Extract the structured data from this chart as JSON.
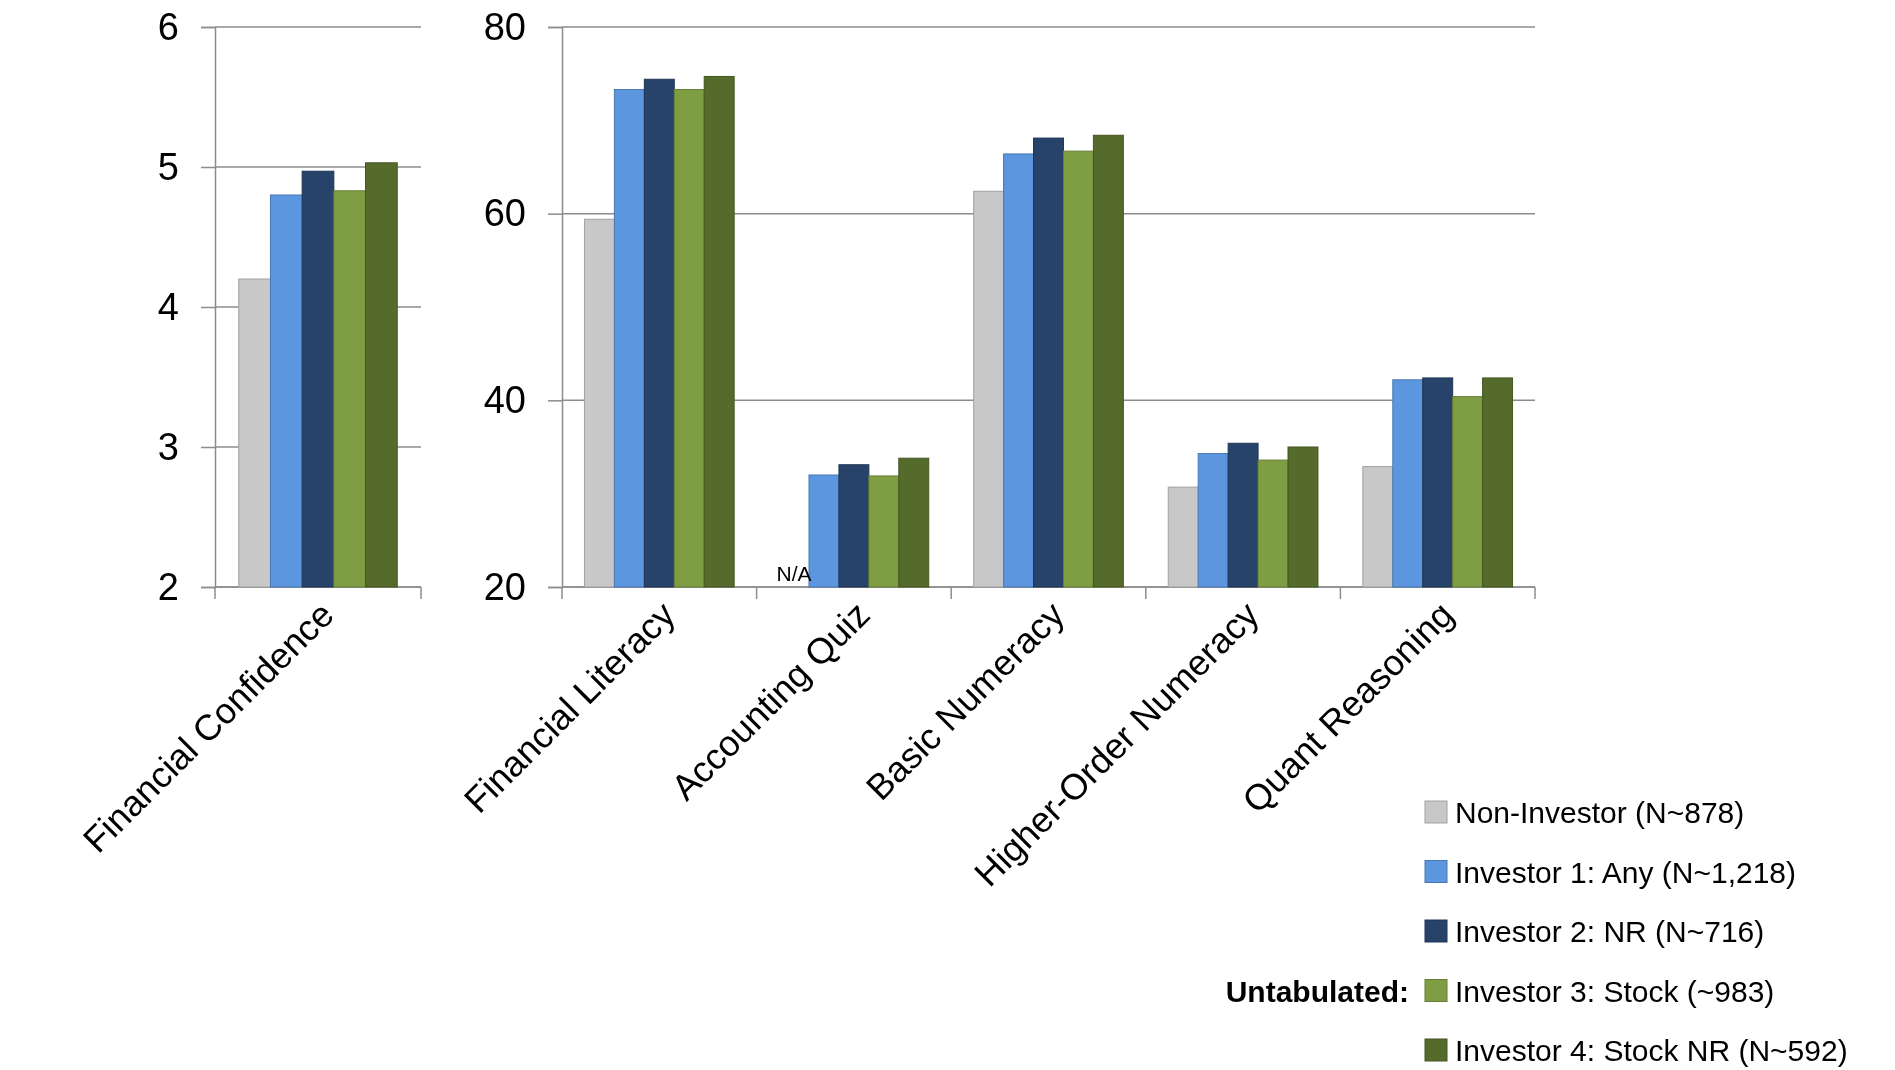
{
  "chart_data": [
    {
      "type": "bar",
      "categories": [
        "Financial Confidence"
      ],
      "ylim": [
        2,
        6
      ],
      "yticks": [
        2,
        3,
        4,
        5,
        6
      ],
      "grid": "y",
      "legend": false,
      "series": [
        {
          "color": "#c8c8c8",
          "values": [
            4.2
          ]
        },
        {
          "color": "#5b96de",
          "values": [
            4.8
          ]
        },
        {
          "color": "#27436a",
          "values": [
            4.97
          ]
        },
        {
          "color": "#7f9d43",
          "values": [
            4.83
          ]
        },
        {
          "color": "#546b2b",
          "values": [
            5.03
          ]
        }
      ]
    },
    {
      "type": "bar",
      "categories": [
        "Financial Literacy",
        "Accounting Quiz",
        "Basic Numeracy",
        "Higher-Order Numeracy",
        "Quant Reasoning"
      ],
      "ylim": [
        20,
        80
      ],
      "yticks": [
        20,
        40,
        60,
        80
      ],
      "grid": "y",
      "legend": "bottom right",
      "annotations": [
        {
          "text": "N/A",
          "x": "Accounting Quiz",
          "y": 20
        },
        "Untabulated:"
      ],
      "series": [
        {
          "name": "Non-Investor (N~878)",
          "color": "#c8c8c8",
          "values": [
            59.4,
            null,
            62.4,
            30.7,
            32.9
          ]
        },
        {
          "name": "Investor 1: Any (N~1,218)",
          "color": "#5b96de",
          "values": [
            73.3,
            32.0,
            66.4,
            34.3,
            42.2
          ]
        },
        {
          "name": "Investor 2: NR (N~716)",
          "color": "#27436a",
          "values": [
            74.4,
            33.1,
            68.1,
            35.4,
            42.4
          ]
        },
        {
          "name": "Investor 3: Stock (~983)",
          "color": "#7f9d43",
          "values": [
            73.3,
            31.9,
            66.7,
            33.6,
            40.4
          ]
        },
        {
          "name": "Investor 4: Stock NR (N~592)",
          "color": "#546b2b",
          "values": [
            74.7,
            33.8,
            68.4,
            35.0,
            42.4
          ]
        }
      ]
    }
  ]
}
